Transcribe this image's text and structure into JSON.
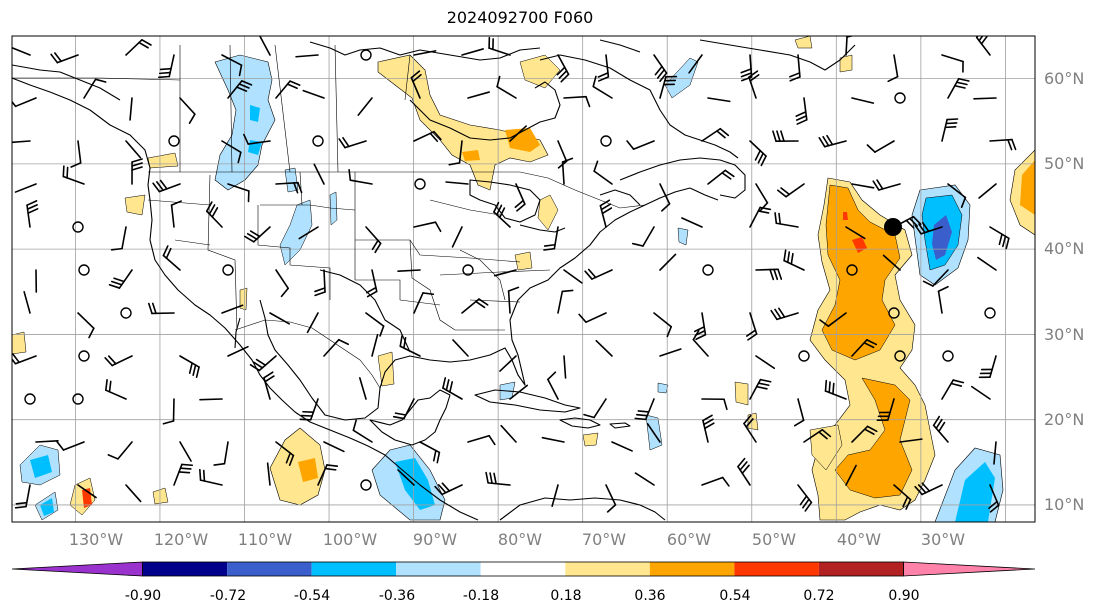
{
  "title": "2024092700 F060",
  "lat_labels": [
    "60°N",
    "50°N",
    "40°N",
    "30°N",
    "20°N",
    "10°N"
  ],
  "lon_labels": [
    "130°W",
    "120°W",
    "110°W",
    "100°W",
    "90°W",
    "80°W",
    "70°W",
    "60°W",
    "50°W",
    "40°W",
    "30°W"
  ],
  "colorbar": {
    "ticks": [
      "-0.90",
      "-0.72",
      "-0.54",
      "-0.36",
      "-0.18",
      "0.18",
      "0.36",
      "0.54",
      "0.72",
      "0.90"
    ],
    "colors": [
      "#9a32cd",
      "#00008b",
      "#3a5fcd",
      "#00bfff",
      "#b0e2ff",
      "#ffffff",
      "#ffe68f",
      "#ffa500",
      "#ff3800",
      "#b22222",
      "#ff82ab"
    ],
    "extend": "both"
  },
  "map": {
    "projection": "equirectangular",
    "extent": {
      "lon_min": -137.5,
      "lon_max": -16.5,
      "lat_min": 8,
      "lat_max": 65
    },
    "grid": true,
    "contour_colors": {
      "yellow": "#ffe68f",
      "orange": "#ffa500",
      "red": "#ff3800",
      "lightblue": "#b0e2ff",
      "blue": "#00bfff",
      "darkblue": "#3a5fcd"
    }
  }
}
